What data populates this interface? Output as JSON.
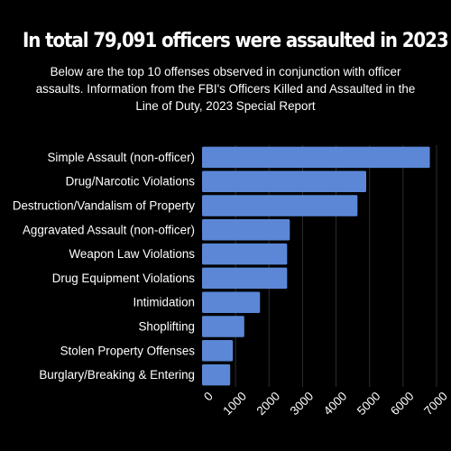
{
  "header": {
    "title": "In total 79,091 officers were assaulted in 2023",
    "subtitle": "Below are the top 10 offenses observed in conjunction with officer assaults. Information from the FBI's Officers Killed and Assaulted in the Line of Duty, 2023 Special Report"
  },
  "chart_data": {
    "type": "bar",
    "orientation": "horizontal",
    "title": "In total 79,091 officers were assaulted in 2023",
    "subtitle": "Below are the top 10 offenses observed in conjunction with officer assaults. Information from the FBI's Officers Killed and Assaulted in the Line of Duty, 2023 Special Report",
    "xlabel": "",
    "ylabel": "",
    "categories": [
      "Simple Assault (non-officer)",
      "Drug/Narcotic Violations",
      "Destruction/Vandalism of Property",
      "Aggravated Assault (non-officer)",
      "Weapon Law Violations",
      "Drug Equipment Violations",
      "Intimidation",
      "Shoplifting",
      "Stolen Property Offenses",
      "Burglary/Breaking & Entering"
    ],
    "values": [
      6800,
      4900,
      4640,
      2620,
      2540,
      2540,
      1730,
      1260,
      920,
      840
    ],
    "xlim": [
      0,
      7000
    ],
    "xticks": [
      0,
      1000,
      2000,
      3000,
      4000,
      5000,
      6000,
      7000
    ],
    "grid": "vertical",
    "legend": "none",
    "bar_color": "#5b87d6",
    "grid_color": "#2e2e2e"
  }
}
